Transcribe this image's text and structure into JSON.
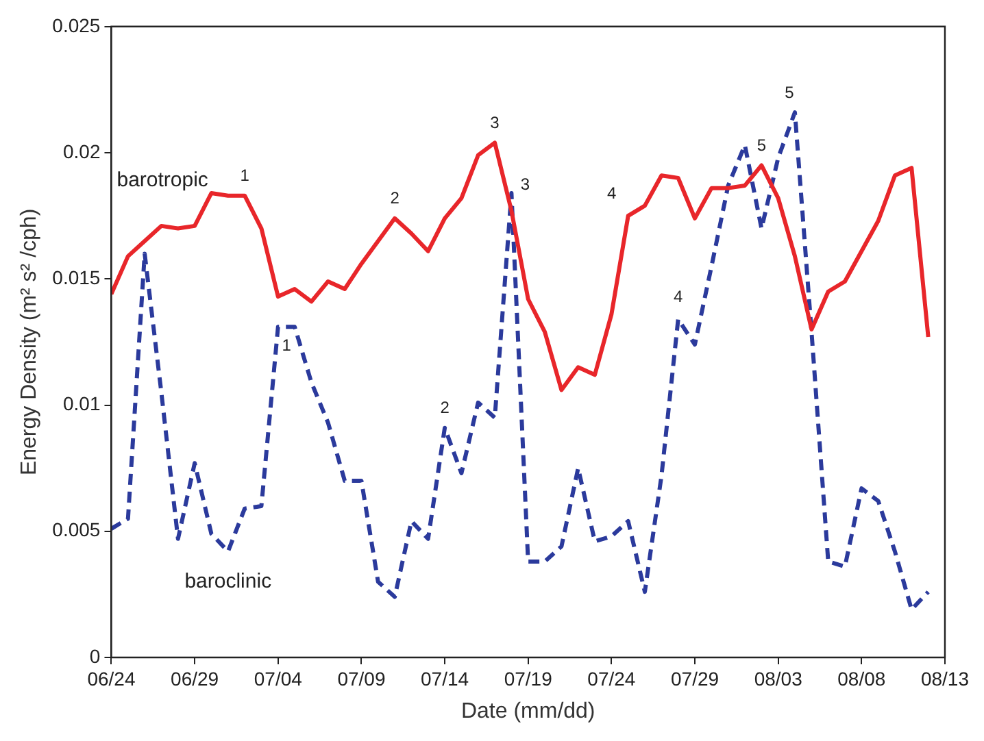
{
  "chart_data": {
    "type": "line",
    "xlabel": "Date (mm/dd)",
    "ylabel": "Energy Density (m² s² /cph)",
    "x": [
      "--06-24",
      "--06-25",
      "--06-26",
      "--06-27",
      "--06-28",
      "--06-29",
      "--06-30",
      "--07-01",
      "--07-02",
      "--07-03",
      "--07-04",
      "--07-05",
      "--07-06",
      "--07-07",
      "--07-08",
      "--07-09",
      "--07-10",
      "--07-11",
      "--07-12",
      "--07-13",
      "--07-14",
      "--07-15",
      "--07-16",
      "--07-17",
      "--07-18",
      "--07-19",
      "--07-20",
      "--07-21",
      "--07-22",
      "--07-23",
      "--07-24",
      "--07-25",
      "--07-26",
      "--07-27",
      "--07-28",
      "--07-29",
      "--07-30",
      "--07-31",
      "--08-01",
      "--08-02",
      "--08-03",
      "--08-04",
      "--08-05",
      "--08-06",
      "--08-07",
      "--08-08",
      "--08-09",
      "--08-10",
      "--08-11",
      "--08-12"
    ],
    "series": [
      {
        "name": "barotropic",
        "color": "#e8262a",
        "line_style": "solid",
        "values": [
          0.0144,
          0.0159,
          0.0165,
          0.0171,
          0.017,
          0.0171,
          0.0184,
          0.0183,
          0.0183,
          0.017,
          0.0143,
          0.0146,
          0.0141,
          0.0149,
          0.0146,
          0.0156,
          0.0165,
          0.0174,
          0.0168,
          0.0161,
          0.0174,
          0.0182,
          0.0199,
          0.0204,
          0.0177,
          0.0142,
          0.0129,
          0.0106,
          0.0115,
          0.0112,
          0.0136,
          0.0175,
          0.0179,
          0.0191,
          0.019,
          0.0174,
          0.0186,
          0.0186,
          0.0187,
          0.0195,
          0.0182,
          0.0159,
          0.013,
          0.0145,
          0.0149,
          0.0161,
          0.0173,
          0.0191,
          0.0194,
          0.0127
        ]
      },
      {
        "name": "baroclinic",
        "color": "#2b3a9c",
        "line_style": "dashed",
        "values": [
          0.0051,
          0.0055,
          0.016,
          0.0105,
          0.0047,
          0.0077,
          0.0049,
          0.0042,
          0.0059,
          0.006,
          0.0131,
          0.0131,
          0.0109,
          0.0093,
          0.007,
          0.007,
          0.003,
          0.0024,
          0.0054,
          0.0047,
          0.0091,
          0.0073,
          0.0101,
          0.0095,
          0.0184,
          0.0038,
          0.0038,
          0.0044,
          0.0075,
          0.0046,
          0.0048,
          0.0054,
          0.0026,
          0.0072,
          0.0134,
          0.0124,
          0.0155,
          0.0187,
          0.0203,
          0.017,
          0.0198,
          0.0216,
          0.0129,
          0.0038,
          0.0036,
          0.0067,
          0.0062,
          0.0042,
          0.0019,
          0.0026
        ]
      }
    ],
    "xlim": [
      "--06-24",
      "--08-13"
    ],
    "xticks": [
      {
        "value": "--06-24",
        "label": "06/24"
      },
      {
        "value": "--06-29",
        "label": "06/29"
      },
      {
        "value": "--07-04",
        "label": "07/04"
      },
      {
        "value": "--07-09",
        "label": "07/09"
      },
      {
        "value": "--07-14",
        "label": "07/14"
      },
      {
        "value": "--07-19",
        "label": "07/19"
      },
      {
        "value": "--07-24",
        "label": "07/24"
      },
      {
        "value": "--07-29",
        "label": "07/29"
      },
      {
        "value": "--08-03",
        "label": "08/03"
      },
      {
        "value": "--08-08",
        "label": "08/08"
      },
      {
        "value": "--08-13",
        "label": "08/13"
      }
    ],
    "ylim": [
      0,
      0.025
    ],
    "yticks": [
      {
        "value": 0,
        "label": "0"
      },
      {
        "value": 0.005,
        "label": "0.005"
      },
      {
        "value": 0.01,
        "label": "0.01"
      },
      {
        "value": 0.015,
        "label": "0.015"
      },
      {
        "value": 0.02,
        "label": "0.02"
      },
      {
        "value": 0.025,
        "label": "0.025"
      }
    ],
    "grid": false,
    "legend": false,
    "marker": "none",
    "annotations": [
      {
        "text": "1",
        "x": "--07-02",
        "y": 0.0183
      },
      {
        "text": "2",
        "x": "--07-11",
        "y": 0.0174
      },
      {
        "text": "3",
        "x": "--07-17",
        "y": 0.0204
      },
      {
        "text": "4",
        "x": "--07-25",
        "y": 0.0175
      },
      {
        "text": "5",
        "x": "--08-02",
        "y": 0.0195
      },
      {
        "text": "1",
        "x": "--07-05",
        "y": 0.0131
      },
      {
        "text": "2",
        "x": "--07-14",
        "y": 0.0091
      },
      {
        "text": "3",
        "x": "--07-18",
        "y": 0.0184
      },
      {
        "text": "4",
        "x": "--07-28",
        "y": 0.0134
      },
      {
        "text": "5",
        "x": "--08-04",
        "y": 0.0216
      }
    ]
  }
}
